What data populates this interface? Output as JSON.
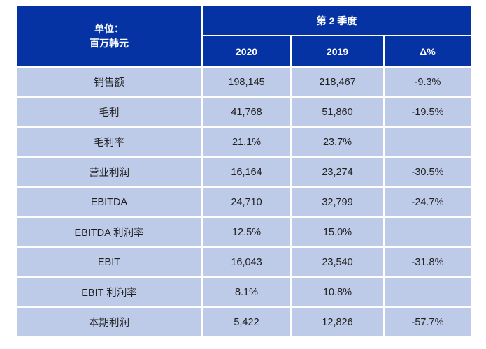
{
  "chart_data": {
    "type": "table",
    "unit_header": {
      "line1": "单位：",
      "line2": "百万韩元"
    },
    "group_header": "第 2 季度",
    "columns": [
      "2020",
      "2019",
      "Δ%"
    ],
    "rows": [
      [
        "销售额",
        "198,145",
        "218,467",
        "-9.3%"
      ],
      [
        "毛利",
        "41,768",
        "51,860",
        "-19.5%"
      ],
      [
        "毛利率",
        "21.1%",
        "23.7%",
        ""
      ],
      [
        "营业利润",
        "16,164",
        "23,274",
        "-30.5%"
      ],
      [
        "EBITDA",
        "24,710",
        "32,799",
        "-24.7%"
      ],
      [
        "EBITDA 利润率",
        "12.5%",
        "15.0%",
        ""
      ],
      [
        "EBIT",
        "16,043",
        "23,540",
        "-31.8%"
      ],
      [
        "EBIT 利润率",
        "8.1%",
        "10.8%",
        ""
      ],
      [
        "本期利润",
        "5,422",
        "12,826",
        "-57.7%"
      ]
    ],
    "colors": {
      "header_bg": "#0633A4",
      "header_text": "#FFFFFF",
      "row_bg": "#BECBE8",
      "body_text": "#202020",
      "grid_gap": "#FFFFFF"
    }
  }
}
